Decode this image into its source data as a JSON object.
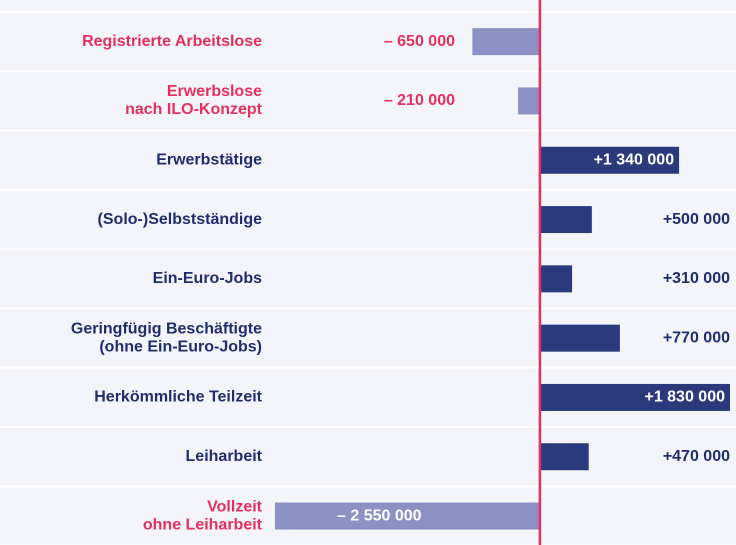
{
  "chart_data": {
    "type": "bar",
    "orientation": "horizontal",
    "categories": [
      [
        "Registrierte Arbeitslose"
      ],
      [
        "Erwerbslose",
        "nach ILO-Konzept"
      ],
      [
        "Erwerbstätige"
      ],
      [
        "(Solo-)Selbstständige"
      ],
      [
        "Ein-Euro-Jobs"
      ],
      [
        "Geringfügig Beschäftigte",
        "(ohne Ein-Euro-Jobs)"
      ],
      [
        "Herkömmliche Teilzeit"
      ],
      [
        "Leiharbeit"
      ],
      [
        "Vollzeit",
        "ohne Leiharbeit"
      ]
    ],
    "values": [
      -650000,
      -210000,
      1340000,
      500000,
      310000,
      770000,
      1830000,
      470000,
      -2550000
    ],
    "value_labels": [
      "– 650 000",
      "– 210 000",
      "+1 340 000",
      "+500 000",
      "+310 000",
      "+770 000",
      "+1 830 000",
      "+470 000",
      "– 2 550 000"
    ],
    "negative_color": "#8c90c2",
    "positive_color": "#2b3a7c",
    "negative_text_color": "#e3305c",
    "positive_text_color": "#1f2d6e",
    "zero_line_color": "#e3305c",
    "xlim": [
      -2550000,
      1830000
    ]
  }
}
